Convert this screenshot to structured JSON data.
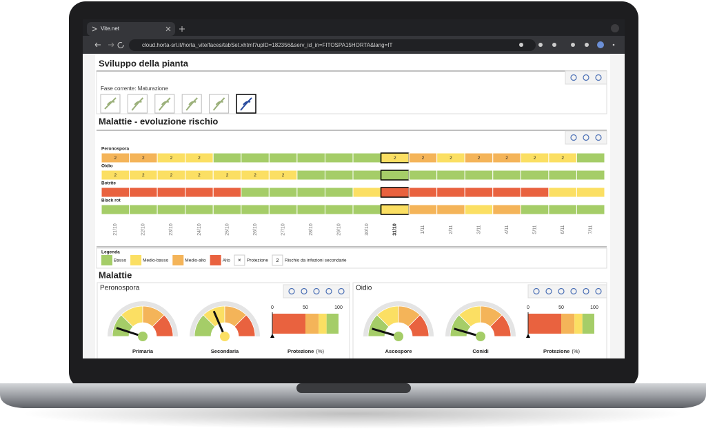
{
  "browser": {
    "tab_title": "Vite.net",
    "url": "cloud.horta-srl.it/horta_vite/faces/tabSet.xhtml?upID=182356&serv_id_in=FITOSPA15HORTA&lang=IT"
  },
  "development": {
    "title": "Sviluppo della pianta",
    "phase": "Fase corrente: Maturazione",
    "stage_count": 6,
    "current_stage": 5
  },
  "risk": {
    "title": "Malattie - evoluzione rischio",
    "dates": [
      "21/10",
      "22/10",
      "23/10",
      "24/10",
      "25/10",
      "26/10",
      "27/10",
      "28/10",
      "29/10",
      "30/10",
      "31/10",
      "1/11",
      "2/11",
      "3/11",
      "4/11",
      "5/11",
      "6/11",
      "7/11"
    ],
    "current_date": 10,
    "diseases": [
      {
        "name": "Peronospora",
        "levels": [
          2,
          2,
          1,
          1,
          0,
          0,
          0,
          0,
          0,
          0,
          1,
          2,
          1,
          2,
          2,
          1,
          1,
          0
        ],
        "labels": [
          "2",
          "2",
          "2",
          "2",
          null,
          null,
          null,
          null,
          null,
          null,
          "2",
          "2",
          "2",
          "2",
          "2",
          "2",
          "2",
          null
        ]
      },
      {
        "name": "Oidio",
        "levels": [
          1,
          1,
          1,
          1,
          1,
          1,
          1,
          0,
          0,
          0,
          0,
          0,
          0,
          0,
          0,
          0,
          0,
          0
        ],
        "labels": [
          "2",
          "2",
          "2",
          "2",
          "2",
          "2",
          "2",
          null,
          null,
          null,
          null,
          null,
          null,
          null,
          null,
          null,
          null,
          null
        ]
      },
      {
        "name": "Botrite",
        "levels": [
          3,
          3,
          3,
          3,
          3,
          0,
          0,
          0,
          0,
          1,
          3,
          3,
          3,
          3,
          3,
          3,
          1,
          1
        ],
        "labels": [
          null,
          null,
          null,
          null,
          null,
          null,
          null,
          null,
          null,
          null,
          null,
          null,
          null,
          null,
          null,
          null,
          null,
          null
        ]
      },
      {
        "name": "Black rot",
        "levels": [
          0,
          0,
          0,
          0,
          0,
          0,
          0,
          0,
          0,
          0,
          1,
          2,
          2,
          1,
          2,
          0,
          0,
          0
        ],
        "labels": [
          null,
          null,
          null,
          null,
          null,
          null,
          null,
          null,
          null,
          null,
          null,
          null,
          null,
          null,
          null,
          null,
          null,
          null
        ]
      }
    ]
  },
  "legend": {
    "title": "Legenda",
    "items": [
      {
        "label": "Basso",
        "color": "#a5cd68"
      },
      {
        "label": "Medio-basso",
        "color": "#fbdf63"
      },
      {
        "label": "Medio-alto",
        "color": "#f4b459"
      },
      {
        "label": "Alto",
        "color": "#e9623f"
      }
    ],
    "protection_symbol": "×",
    "protection": "Protezione",
    "secondary_symbol": "2",
    "secondary": "Rischio da infezioni secondarie"
  },
  "diseases": {
    "title": "Malattie",
    "panels": [
      {
        "title": "Peronospora",
        "gauges": [
          {
            "label": "Primaria",
            "value": 10,
            "level": 0
          },
          {
            "label": "Secondaria",
            "value": 37,
            "level": 1
          }
        ],
        "protection": {
          "label": "Protezione",
          "unit": "(%)",
          "lim": [
            0,
            100
          ],
          "ticks": [
            0,
            50,
            100
          ],
          "segments": [
            50,
            20,
            12,
            18
          ],
          "segment_levels": [
            3,
            2,
            1,
            0
          ],
          "value": 0
        }
      },
      {
        "title": "Oidio",
        "gauges": [
          {
            "label": "Ascospore",
            "value": 9,
            "level": 0
          },
          {
            "label": "Conidi",
            "value": 9,
            "level": 0
          }
        ],
        "protection": {
          "label": "Protezione",
          "unit": "(%)",
          "lim": [
            0,
            100
          ],
          "ticks": [
            0,
            50,
            100
          ],
          "segments": [
            50,
            20,
            12,
            18
          ],
          "segment_levels": [
            3,
            2,
            1,
            0
          ],
          "value": 0
        }
      }
    ]
  }
}
